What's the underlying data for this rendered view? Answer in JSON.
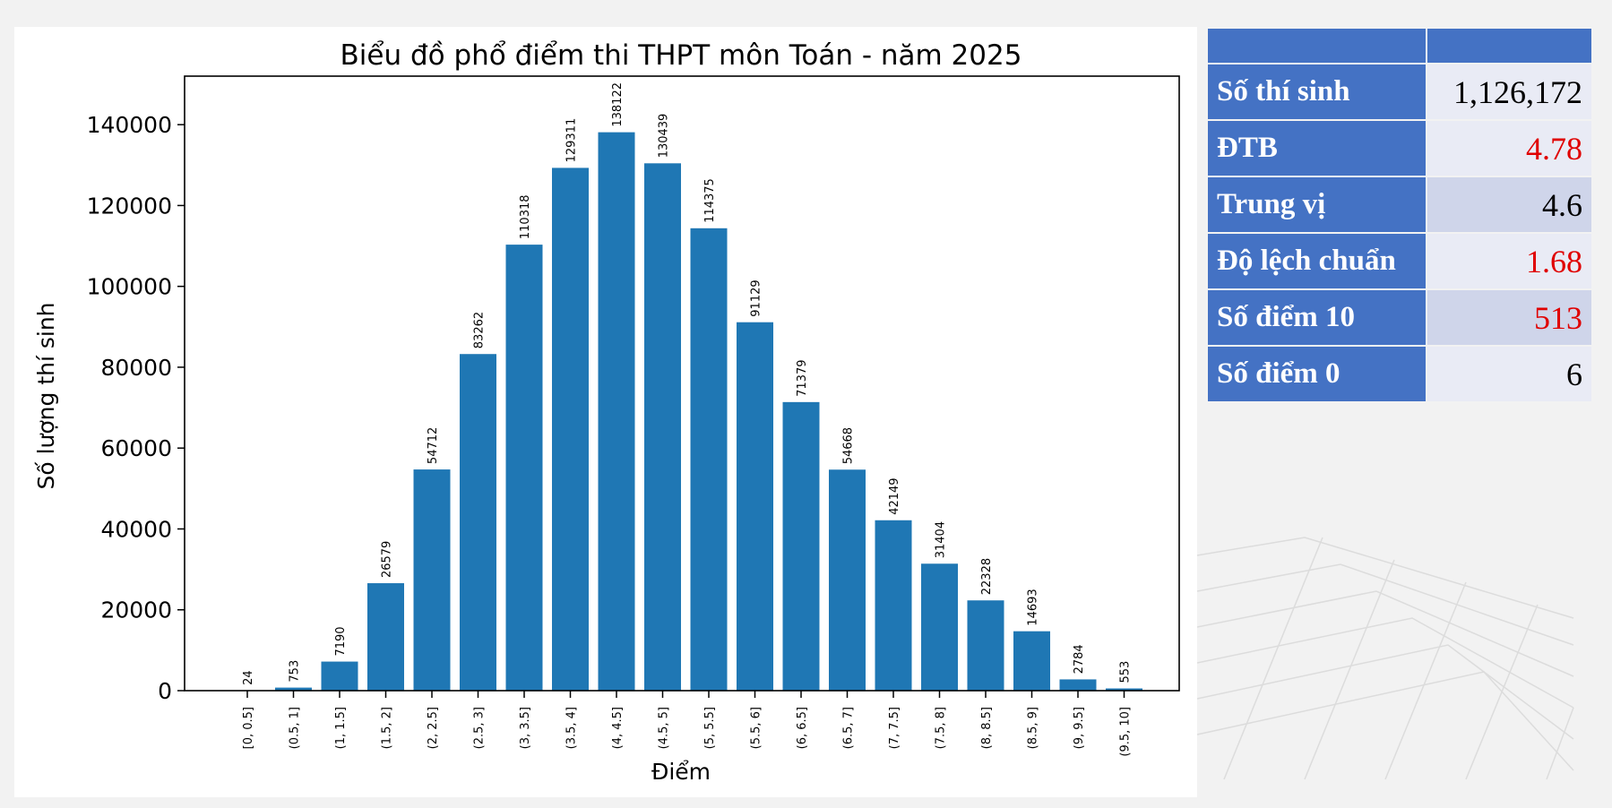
{
  "chart_data": {
    "type": "bar",
    "title": "Biểu đồ phổ điểm thi THPT môn Toán - năm 2025",
    "xlabel": "Điểm",
    "ylabel": "Số lượng thí sinh",
    "categories": [
      "[0, 0.5]",
      "(0.5, 1]",
      "(1, 1.5]",
      "(1.5, 2]",
      "(2, 2.5]",
      "(2.5, 3]",
      "(3, 3.5]",
      "(3.5, 4]",
      "(4, 4.5]",
      "(4.5, 5]",
      "(5, 5.5]",
      "(5.5, 6]",
      "(6, 6.5]",
      "(6.5, 7]",
      "(7, 7.5]",
      "(7.5, 8]",
      "(8, 8.5]",
      "(8.5, 9]",
      "(9, 9.5]",
      "(9.5, 10]"
    ],
    "values": [
      24,
      753,
      7190,
      26579,
      54712,
      83262,
      110318,
      129311,
      138122,
      130439,
      114375,
      91129,
      71379,
      54668,
      42149,
      31404,
      22328,
      14693,
      2784,
      553
    ],
    "yticks": [
      0,
      20000,
      40000,
      60000,
      80000,
      100000,
      120000,
      140000
    ],
    "ylim": [
      0,
      152000
    ],
    "grid": false,
    "bar_color": "#1f77b4"
  },
  "stats_table": {
    "header_color": "#4472c4",
    "rows": [
      {
        "label": "Số thí sinh",
        "value": "1,126,172",
        "color": "#000000"
      },
      {
        "label": "ĐTB",
        "value": "4.78",
        "color": "#e00000"
      },
      {
        "label": "Trung vị",
        "value": "4.6",
        "color": "#000000"
      },
      {
        "label": "Độ lệch chuẩn",
        "value": "1.68",
        "color": "#e00000"
      },
      {
        "label": "Số điểm 10",
        "value": "513",
        "color": "#e00000"
      },
      {
        "label": "Số điểm 0",
        "value": "6",
        "color": "#000000"
      }
    ]
  }
}
